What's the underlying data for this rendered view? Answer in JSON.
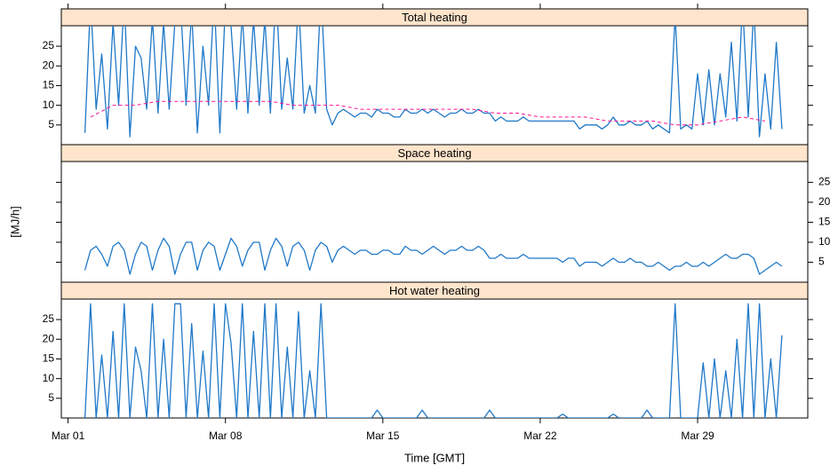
{
  "chart_data": [
    {
      "type": "line",
      "title": "Total heating",
      "xlim": [
        0.7,
        33.9
      ],
      "ylim": [
        0,
        30.2
      ],
      "yticks": [
        5,
        10,
        15,
        20,
        25
      ],
      "ytick_side": "left",
      "x": [
        1.75,
        2,
        2.25,
        2.5,
        2.75,
        3,
        3.25,
        3.5,
        3.75,
        4,
        4.25,
        4.5,
        4.75,
        5,
        5.25,
        5.5,
        5.75,
        6,
        6.25,
        6.5,
        6.75,
        7,
        7.25,
        7.5,
        7.75,
        8,
        8.25,
        8.5,
        8.75,
        9,
        9.25,
        9.5,
        9.75,
        10,
        10.25,
        10.5,
        10.75,
        11,
        11.25,
        11.5,
        11.75,
        12,
        12.25,
        12.5,
        12.75,
        13,
        13.25,
        13.5,
        13.75,
        14,
        14.25,
        14.5,
        14.75,
        15,
        15.25,
        15.5,
        15.75,
        16,
        16.25,
        16.5,
        16.75,
        17,
        17.25,
        17.5,
        17.75,
        18,
        18.25,
        18.5,
        18.75,
        19,
        19.25,
        19.5,
        19.75,
        20,
        20.25,
        20.5,
        20.75,
        21,
        21.25,
        21.5,
        21.75,
        22,
        22.25,
        22.5,
        22.75,
        23,
        23.25,
        23.5,
        23.75,
        24,
        24.25,
        24.5,
        24.75,
        25,
        25.25,
        25.5,
        25.75,
        26,
        26.25,
        26.5,
        26.75,
        27,
        27.25,
        27.5,
        27.75,
        28,
        28.25,
        28.5,
        28.75,
        29,
        29.25,
        29.5,
        29.75,
        30,
        30.25,
        30.5,
        30.75,
        31,
        31.25,
        31.5,
        31.75,
        32,
        32.25,
        32.5,
        32.75
      ],
      "series": [
        {
          "color": "#1f78c8",
          "values": [
            3,
            37,
            9,
            23,
            4,
            31,
            10,
            37,
            2,
            25,
            22,
            9,
            32,
            8,
            31,
            9,
            31,
            36,
            10,
            34,
            3,
            25,
            10,
            38,
            3,
            36,
            30,
            9,
            33,
            8,
            32,
            10,
            32,
            8,
            40,
            9,
            22,
            9,
            37,
            8,
            15,
            8,
            39,
            9,
            5,
            8,
            9,
            8,
            7,
            8,
            8,
            7,
            9,
            8,
            8,
            7,
            7,
            9,
            8,
            8,
            9,
            8,
            9,
            8,
            7,
            8,
            8,
            9,
            8,
            8,
            9,
            8,
            8,
            6,
            7,
            6,
            6,
            6,
            7,
            6,
            6,
            6,
            6,
            6,
            6,
            6,
            6,
            6,
            4,
            5,
            5,
            5,
            4,
            5,
            7,
            5,
            5,
            6,
            5,
            5,
            6,
            4,
            5,
            4,
            3,
            33,
            4,
            5,
            4,
            18,
            5,
            19,
            5,
            18,
            7,
            26,
            6,
            36,
            7,
            35,
            2,
            18,
            4,
            26,
            4
          ]
        },
        {
          "color": "#ff1493",
          "dashed": true,
          "x": [
            2,
            3,
            4,
            5,
            6,
            7,
            8,
            9,
            10,
            11,
            12,
            13,
            14,
            15,
            16,
            17,
            18,
            19,
            20,
            21,
            22,
            23,
            24,
            25,
            26,
            27,
            28,
            29,
            30,
            31,
            32
          ],
          "values": [
            7,
            10,
            10,
            11,
            11,
            11,
            11,
            11,
            11,
            10,
            10,
            10,
            9,
            9,
            9,
            9,
            9,
            9,
            8,
            8,
            7,
            7,
            7,
            6,
            6,
            6,
            5,
            5,
            6,
            7,
            6
          ]
        }
      ]
    },
    {
      "type": "line",
      "title": "Space heating",
      "ylabel": "[MJ/h]",
      "xlim": [
        0.7,
        33.9
      ],
      "ylim": [
        0,
        30.2
      ],
      "yticks": [
        5,
        10,
        15,
        20,
        25
      ],
      "ytick_side": "right",
      "x": [
        1.75,
        2,
        2.25,
        2.5,
        2.75,
        3,
        3.25,
        3.5,
        3.75,
        4,
        4.25,
        4.5,
        4.75,
        5,
        5.25,
        5.5,
        5.75,
        6,
        6.25,
        6.5,
        6.75,
        7,
        7.25,
        7.5,
        7.75,
        8,
        8.25,
        8.5,
        8.75,
        9,
        9.25,
        9.5,
        9.75,
        10,
        10.25,
        10.5,
        10.75,
        11,
        11.25,
        11.5,
        11.75,
        12,
        12.25,
        12.5,
        12.75,
        13,
        13.25,
        13.5,
        13.75,
        14,
        14.25,
        14.5,
        14.75,
        15,
        15.25,
        15.5,
        15.75,
        16,
        16.25,
        16.5,
        16.75,
        17,
        17.25,
        17.5,
        17.75,
        18,
        18.25,
        18.5,
        18.75,
        19,
        19.25,
        19.5,
        19.75,
        20,
        20.25,
        20.5,
        20.75,
        21,
        21.25,
        21.5,
        21.75,
        22,
        22.25,
        22.5,
        22.75,
        23,
        23.25,
        23.5,
        23.75,
        24,
        24.25,
        24.5,
        24.75,
        25,
        25.25,
        25.5,
        25.75,
        26,
        26.25,
        26.5,
        26.75,
        27,
        27.25,
        27.5,
        27.75,
        28,
        28.25,
        28.5,
        28.75,
        29,
        29.25,
        29.5,
        29.75,
        30,
        30.25,
        30.5,
        30.75,
        31,
        31.25,
        31.5,
        31.75,
        32,
        32.25,
        32.5,
        32.75
      ],
      "series": [
        {
          "color": "#1f78c8",
          "values": [
            3,
            8,
            9,
            7,
            4,
            9,
            10,
            8,
            2,
            7,
            10,
            9,
            3,
            8,
            11,
            9,
            2,
            7,
            10,
            10,
            3,
            8,
            10,
            9,
            3,
            7,
            11,
            9,
            4,
            8,
            10,
            10,
            3,
            8,
            11,
            9,
            4,
            9,
            10,
            8,
            3,
            8,
            10,
            9,
            5,
            8,
            9,
            8,
            7,
            8,
            8,
            7,
            7,
            8,
            8,
            7,
            7,
            9,
            8,
            8,
            7,
            8,
            9,
            8,
            7,
            8,
            8,
            9,
            8,
            8,
            9,
            8,
            6,
            6,
            7,
            6,
            6,
            6,
            7,
            6,
            6,
            6,
            6,
            6,
            6,
            5,
            6,
            6,
            4,
            5,
            5,
            5,
            4,
            5,
            6,
            5,
            5,
            6,
            5,
            5,
            4,
            4,
            5,
            4,
            3,
            4,
            4,
            5,
            4,
            4,
            5,
            4,
            5,
            6,
            7,
            6,
            6,
            7,
            7,
            6,
            2,
            3,
            4,
            5,
            4
          ]
        }
      ]
    },
    {
      "type": "line",
      "title": "Hot water heating",
      "xlabel": "Time [GMT]",
      "xlim": [
        0.7,
        33.9
      ],
      "ylim": [
        0,
        30.2
      ],
      "yticks": [
        5,
        10,
        15,
        20,
        25
      ],
      "ytick_side": "left",
      "xticks": [
        {
          "value": 1,
          "label": "Mar 01"
        },
        {
          "value": 8,
          "label": "Mar 08"
        },
        {
          "value": 15,
          "label": "Mar 15"
        },
        {
          "value": 22,
          "label": "Mar 22"
        },
        {
          "value": 29,
          "label": "Mar 29"
        }
      ],
      "x": [
        1.75,
        2,
        2.25,
        2.5,
        2.75,
        3,
        3.25,
        3.5,
        3.75,
        4,
        4.25,
        4.5,
        4.75,
        5,
        5.25,
        5.5,
        5.75,
        6,
        6.25,
        6.5,
        6.75,
        7,
        7.25,
        7.5,
        7.75,
        8,
        8.25,
        8.5,
        8.75,
        9,
        9.25,
        9.5,
        9.75,
        10,
        10.25,
        10.5,
        10.75,
        11,
        11.25,
        11.5,
        11.75,
        12,
        12.25,
        12.5,
        12.75,
        13,
        13.25,
        13.5,
        13.75,
        14,
        14.25,
        14.5,
        14.75,
        15,
        15.25,
        15.5,
        15.75,
        16,
        16.25,
        16.5,
        16.75,
        17,
        17.25,
        17.5,
        17.75,
        18,
        18.25,
        18.5,
        18.75,
        19,
        19.25,
        19.5,
        19.75,
        20,
        20.25,
        20.5,
        20.75,
        21,
        21.25,
        21.5,
        21.75,
        22,
        22.25,
        22.5,
        22.75,
        23,
        23.25,
        23.5,
        23.75,
        24,
        24.25,
        24.5,
        24.75,
        25,
        25.25,
        25.5,
        25.75,
        26,
        26.25,
        26.5,
        26.75,
        27,
        27.25,
        27.5,
        27.75,
        28,
        28.25,
        28.5,
        28.75,
        29,
        29.25,
        29.5,
        29.75,
        30,
        30.25,
        30.5,
        30.75,
        31,
        31.25,
        31.5,
        31.75,
        32,
        32.25,
        32.5,
        32.75
      ],
      "series": [
        {
          "color": "#1f78c8",
          "values": [
            0,
            29,
            0,
            16,
            0,
            22,
            0,
            29,
            0,
            18,
            12,
            0,
            29,
            0,
            20,
            0,
            29,
            29,
            0,
            24,
            0,
            17,
            0,
            29,
            0,
            29,
            19,
            0,
            29,
            0,
            22,
            0,
            29,
            0,
            29,
            0,
            18,
            0,
            27,
            0,
            12,
            0,
            29,
            0,
            0,
            0,
            0,
            0,
            0,
            0,
            0,
            0,
            2,
            0,
            0,
            0,
            0,
            0,
            0,
            0,
            2,
            0,
            0,
            0,
            0,
            0,
            0,
            0,
            0,
            0,
            0,
            0,
            2,
            0,
            0,
            0,
            0,
            0,
            0,
            0,
            0,
            0,
            0,
            0,
            0,
            1,
            0,
            0,
            0,
            0,
            0,
            0,
            0,
            0,
            1,
            0,
            0,
            0,
            0,
            0,
            2,
            0,
            0,
            0,
            0,
            29,
            0,
            0,
            0,
            0,
            14,
            0,
            15,
            0,
            12,
            0,
            20,
            0,
            29,
            0,
            29,
            0,
            15,
            0,
            21
          ]
        }
      ]
    }
  ]
}
